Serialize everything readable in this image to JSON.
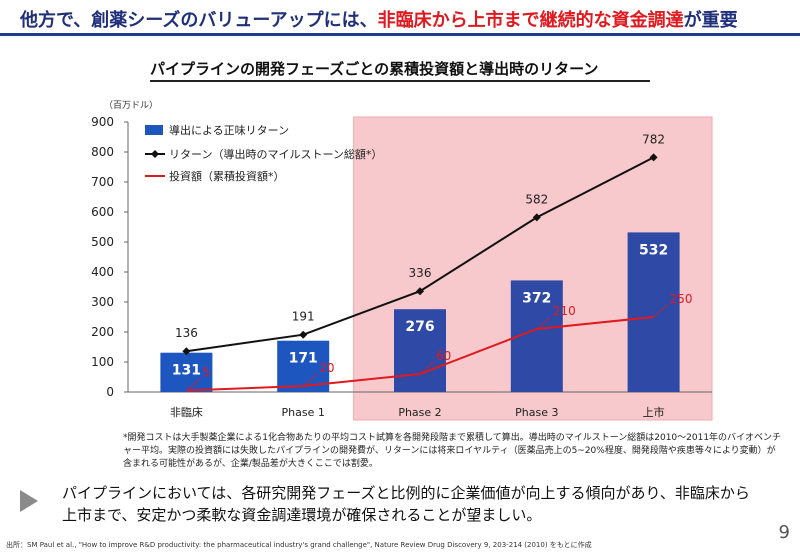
{
  "headline": {
    "part1": "他方で、創薬シーズのバリューアップには、",
    "highlight": "非臨床から上市まで継続的な資金調達",
    "part2": "が重要"
  },
  "chart_data": {
    "type": "bar",
    "title": "パイプラインの開発フェーズごとの累積投資額と導出時のリターン",
    "unit_label": "（百万ドル）",
    "categories": [
      "非臨床",
      "Phase 1",
      "Phase 2",
      "Phase 3",
      "上市"
    ],
    "ylim": [
      0,
      900
    ],
    "yticks": [
      0,
      100,
      200,
      300,
      400,
      500,
      600,
      700,
      800,
      900
    ],
    "highlight_region": [
      "Phase 2",
      "上市"
    ],
    "legend": [
      "導出による正味リターン",
      "リターン（導出時のマイルストーン総額*）",
      "投資額（累積投資額*）"
    ],
    "series": [
      {
        "name": "導出による正味リターン",
        "type": "bar",
        "color": "#1e56c0",
        "values": [
          131,
          171,
          276,
          372,
          532
        ]
      },
      {
        "name": "リターン（導出時のマイルストーン総額*）",
        "type": "line",
        "color": "#111111",
        "values": [
          136,
          191,
          336,
          582,
          782
        ]
      },
      {
        "name": "投資額（累積投資額*）",
        "type": "line",
        "color": "#e0191f",
        "values": [
          5,
          20,
          60,
          210,
          250
        ]
      }
    ]
  },
  "note": "*開発コストは大手製薬企業による1化合物あたりの平均コスト試算を各開発段階まで累積して算出。導出時のマイルストーン総額は2010～2011年のバイオベンチャー平均。実際の投資額には失敗したパイプラインの開発費が、リターンには将来ロイヤルティ（医薬品売上の5~20%程度、開発段階や疾患等々により変動）が含まれる可能性があるが、企業/製品差が大きくここでは割愛。",
  "conclusion": "パイプラインにおいては、各研究開発フェーズと比例的に企業価値が向上する傾向があり、非臨床から上市まで、安定かつ柔軟な資金調達環境が確保されることが望ましい。",
  "source": "出所：SM Paul et al., \"How to improve R&D productivity: the pharmaceutical industry's grand challenge\", Nature Review Drug Discovery 9, 203-214 (2010) をもとに作成",
  "page_number": "9"
}
